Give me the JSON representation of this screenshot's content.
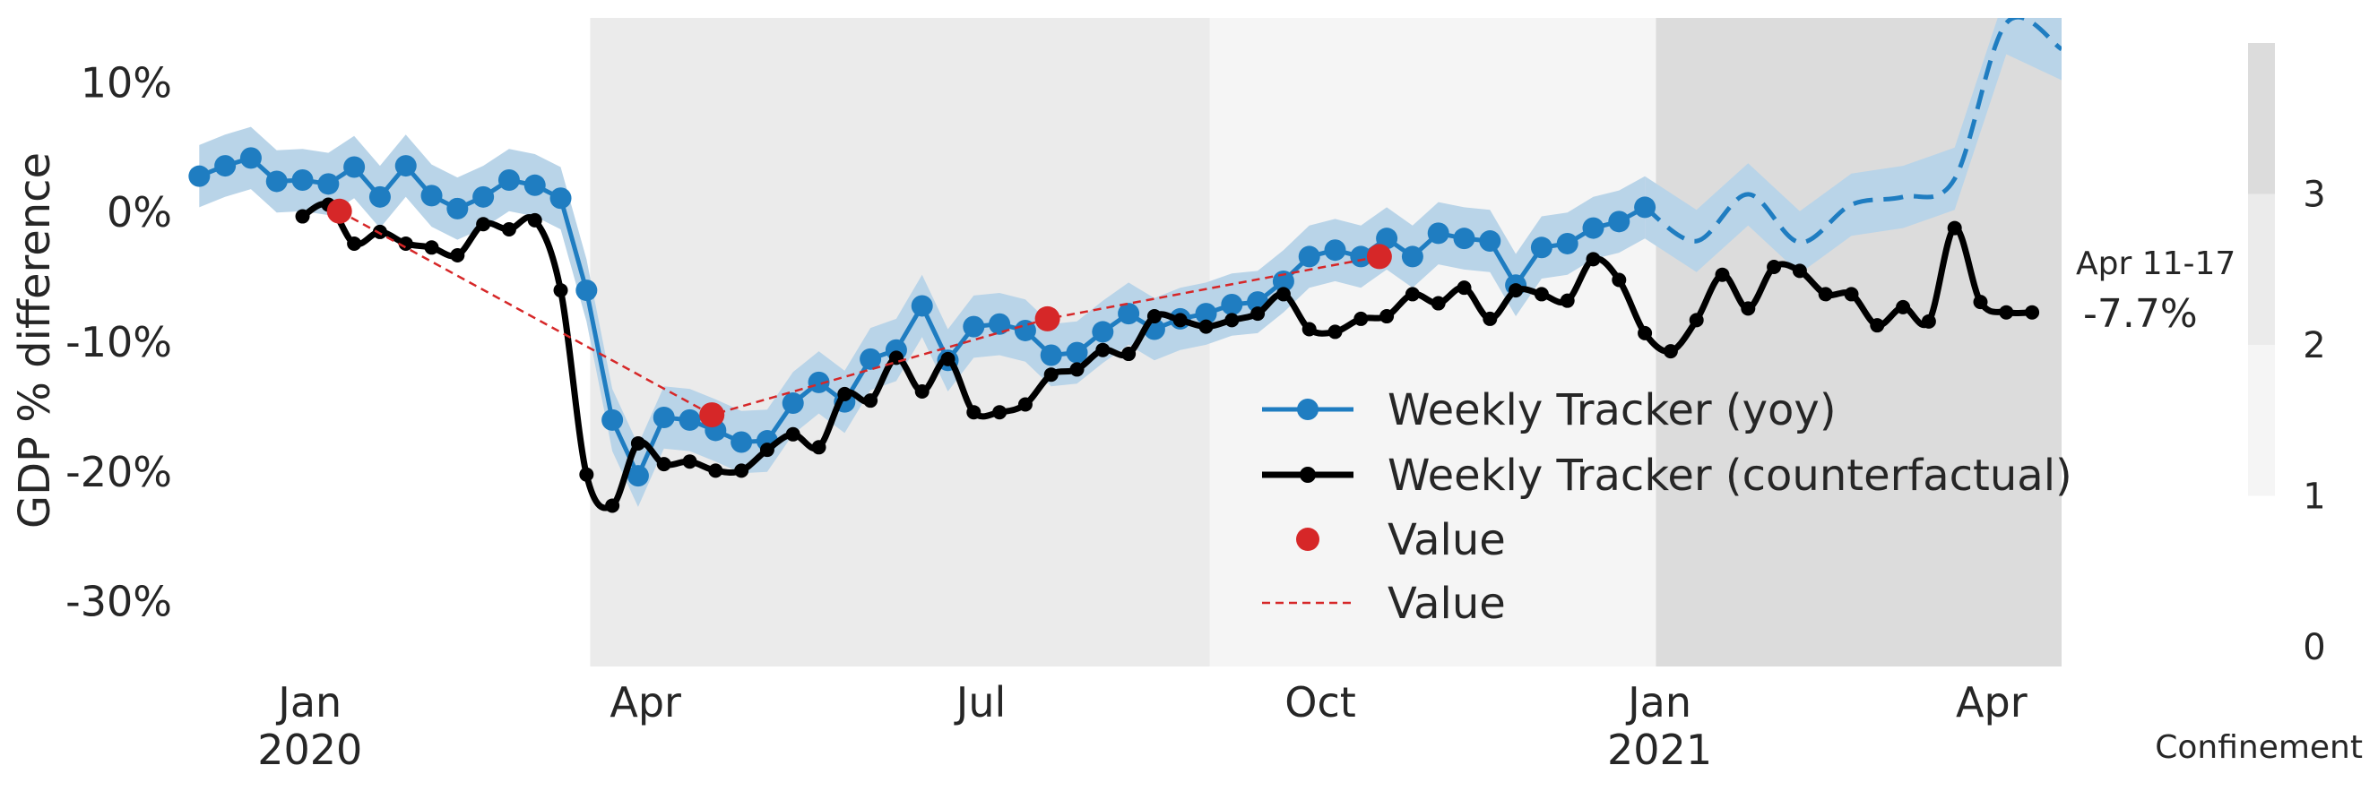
{
  "chart_data": {
    "type": "line",
    "ylabel": "GDP % difference",
    "ylim": [
      -35,
      15
    ],
    "yticks": [
      10,
      0,
      -10,
      -20,
      -30
    ],
    "ytick_labels": [
      "10%",
      "0%",
      "-10%",
      "-20%",
      "-30%"
    ],
    "xlim": [
      "2019-11-29",
      "2021-04-20"
    ],
    "xticks": [
      {
        "date": "2020-01-01",
        "label": "Jan",
        "sublabel": "2020"
      },
      {
        "date": "2020-04-01",
        "label": "Apr",
        "sublabel": ""
      },
      {
        "date": "2020-07-01",
        "label": "Jul",
        "sublabel": ""
      },
      {
        "date": "2020-10-01",
        "label": "Oct",
        "sublabel": ""
      },
      {
        "date": "2021-01-01",
        "label": "Jan",
        "sublabel": "2021"
      },
      {
        "date": "2021-04-01",
        "label": "Apr",
        "sublabel": ""
      }
    ],
    "grid": false,
    "legend_position": "lower-center",
    "confinement_periods": [
      {
        "start": "2020-03-17",
        "end": "2020-09-01",
        "level": 2,
        "color": "#ebebeb"
      },
      {
        "start": "2020-09-01",
        "end": "2020-12-31",
        "level": 1,
        "color": "#f5f5f5"
      },
      {
        "start": "2020-12-31",
        "end": "2021-04-20",
        "level": 3,
        "color": "#dcdcdc"
      }
    ],
    "series": [
      {
        "name": "Weekly Tracker (yoy)",
        "color": "#1f7dc1",
        "band_color": "#b9d4e8",
        "band_halfwidth": 2.4,
        "x": [
          "2019-12-02",
          "2019-12-09",
          "2019-12-16",
          "2019-12-23",
          "2019-12-30",
          "2020-01-06",
          "2020-01-13",
          "2020-01-20",
          "2020-01-27",
          "2020-02-03",
          "2020-02-10",
          "2020-02-17",
          "2020-02-24",
          "2020-03-02",
          "2020-03-09",
          "2020-03-16",
          "2020-03-23",
          "2020-03-30",
          "2020-04-06",
          "2020-04-13",
          "2020-04-20",
          "2020-04-27",
          "2020-05-04",
          "2020-05-11",
          "2020-05-18",
          "2020-05-25",
          "2020-06-01",
          "2020-06-08",
          "2020-06-15",
          "2020-06-22",
          "2020-06-29",
          "2020-07-06",
          "2020-07-13",
          "2020-07-20",
          "2020-07-27",
          "2020-08-03",
          "2020-08-10",
          "2020-08-17",
          "2020-08-24",
          "2020-08-31",
          "2020-09-07",
          "2020-09-14",
          "2020-09-21",
          "2020-09-28",
          "2020-10-05",
          "2020-10-12",
          "2020-10-19",
          "2020-10-26",
          "2020-11-02",
          "2020-11-09",
          "2020-11-16",
          "2020-11-23",
          "2020-11-30",
          "2020-12-07",
          "2020-12-14",
          "2020-12-21",
          "2020-12-28"
        ],
        "values": [
          2.8,
          3.6,
          4.2,
          2.4,
          2.5,
          2.2,
          3.5,
          1.2,
          3.6,
          1.3,
          0.3,
          1.2,
          2.5,
          2.1,
          1.1,
          -6.0,
          -16.0,
          -20.3,
          -15.8,
          -16.0,
          -16.8,
          -17.7,
          -17.6,
          -14.7,
          -13.1,
          -14.6,
          -11.3,
          -10.6,
          -7.2,
          -11.4,
          -8.8,
          -8.6,
          -9.1,
          -11.0,
          -10.8,
          -9.2,
          -7.8,
          -9.0,
          -8.2,
          -7.8,
          -7.1,
          -6.9,
          -5.3,
          -3.4,
          -2.9,
          -3.4,
          -2.0,
          -3.4,
          -1.6,
          -2.0,
          -2.2,
          -5.6,
          -2.7,
          -2.4,
          -1.2,
          -0.7,
          0.4
        ],
        "forecast": {
          "x": [
            "2020-12-28",
            "2021-01-11",
            "2021-01-25",
            "2021-02-08",
            "2021-02-22",
            "2021-03-08",
            "2021-03-22",
            "2021-04-05",
            "2021-04-20"
          ],
          "values": [
            0.4,
            -2.2,
            1.4,
            -2.3,
            0.6,
            1.2,
            2.6,
            14.6,
            12.6
          ]
        }
      },
      {
        "name": "Weekly Tracker (counterfactual)",
        "color": "#000000",
        "x": [
          "2019-12-30",
          "2020-01-06",
          "2020-01-13",
          "2020-01-20",
          "2020-01-27",
          "2020-02-03",
          "2020-02-10",
          "2020-02-17",
          "2020-02-24",
          "2020-03-02",
          "2020-03-09",
          "2020-03-16",
          "2020-03-23",
          "2020-03-30",
          "2020-04-06",
          "2020-04-13",
          "2020-04-20",
          "2020-04-27",
          "2020-05-04",
          "2020-05-11",
          "2020-05-18",
          "2020-05-25",
          "2020-06-01",
          "2020-06-08",
          "2020-06-15",
          "2020-06-22",
          "2020-06-29",
          "2020-07-06",
          "2020-07-13",
          "2020-07-20",
          "2020-07-27",
          "2020-08-03",
          "2020-08-10",
          "2020-08-17",
          "2020-08-24",
          "2020-08-31",
          "2020-09-07",
          "2020-09-14",
          "2020-09-21",
          "2020-09-28",
          "2020-10-05",
          "2020-10-12",
          "2020-10-19",
          "2020-10-26",
          "2020-11-02",
          "2020-11-09",
          "2020-11-16",
          "2020-11-23",
          "2020-11-30",
          "2020-12-07",
          "2020-12-14",
          "2020-12-21",
          "2020-12-28",
          "2021-01-04",
          "2021-01-11",
          "2021-01-18",
          "2021-01-25",
          "2021-02-01",
          "2021-02-08",
          "2021-02-15",
          "2021-02-22",
          "2021-03-01",
          "2021-03-08",
          "2021-03-15",
          "2021-03-22",
          "2021-03-29",
          "2021-04-05",
          "2021-04-12"
        ],
        "values": [
          -0.3,
          0.6,
          -2.4,
          -1.5,
          -2.4,
          -2.7,
          -3.3,
          -0.9,
          -1.3,
          -0.6,
          -6.0,
          -20.2,
          -22.6,
          -17.8,
          -19.4,
          -19.2,
          -19.9,
          -19.9,
          -18.3,
          -17.1,
          -18.1,
          -14.0,
          -14.5,
          -11.2,
          -13.8,
          -11.3,
          -15.4,
          -15.4,
          -14.8,
          -12.5,
          -12.1,
          -10.6,
          -10.9,
          -8.0,
          -8.3,
          -8.8,
          -8.3,
          -7.8,
          -6.3,
          -9.0,
          -9.2,
          -8.2,
          -8.0,
          -6.3,
          -7.0,
          -5.8,
          -8.2,
          -6.0,
          -6.3,
          -6.8,
          -3.6,
          -5.2,
          -9.3,
          -10.7,
          -8.3,
          -4.8,
          -7.4,
          -4.2,
          -4.5,
          -6.3,
          -6.3,
          -8.7,
          -7.3,
          -8.4,
          -1.2,
          -6.9,
          -7.7,
          -7.7
        ]
      },
      {
        "name": "Value",
        "type": "scatter",
        "color": "#d62728",
        "x": [
          "2020-01-09",
          "2020-04-19",
          "2020-07-19",
          "2020-10-17"
        ],
        "values": [
          0.1,
          -15.6,
          -8.2,
          -3.4
        ]
      },
      {
        "name": "Value",
        "type": "dashed-line",
        "color": "#d62728",
        "x": [
          "2020-01-09",
          "2020-04-19",
          "2020-07-19",
          "2020-10-17"
        ],
        "values": [
          0.1,
          -15.6,
          -8.2,
          -3.4
        ]
      }
    ],
    "annotation": {
      "date_label": "Apr 11-17",
      "value_label": "-7.7%"
    },
    "colorbar": {
      "label": "Confinement",
      "ticks": [
        "0",
        "1",
        "2",
        "3"
      ],
      "segments": [
        {
          "from": 1,
          "to": 2,
          "color": "#f5f5f5"
        },
        {
          "from": 2,
          "to": 3,
          "color": "#ebebeb"
        },
        {
          "from": 3,
          "to": 4,
          "color": "#dcdcdc"
        }
      ]
    }
  }
}
